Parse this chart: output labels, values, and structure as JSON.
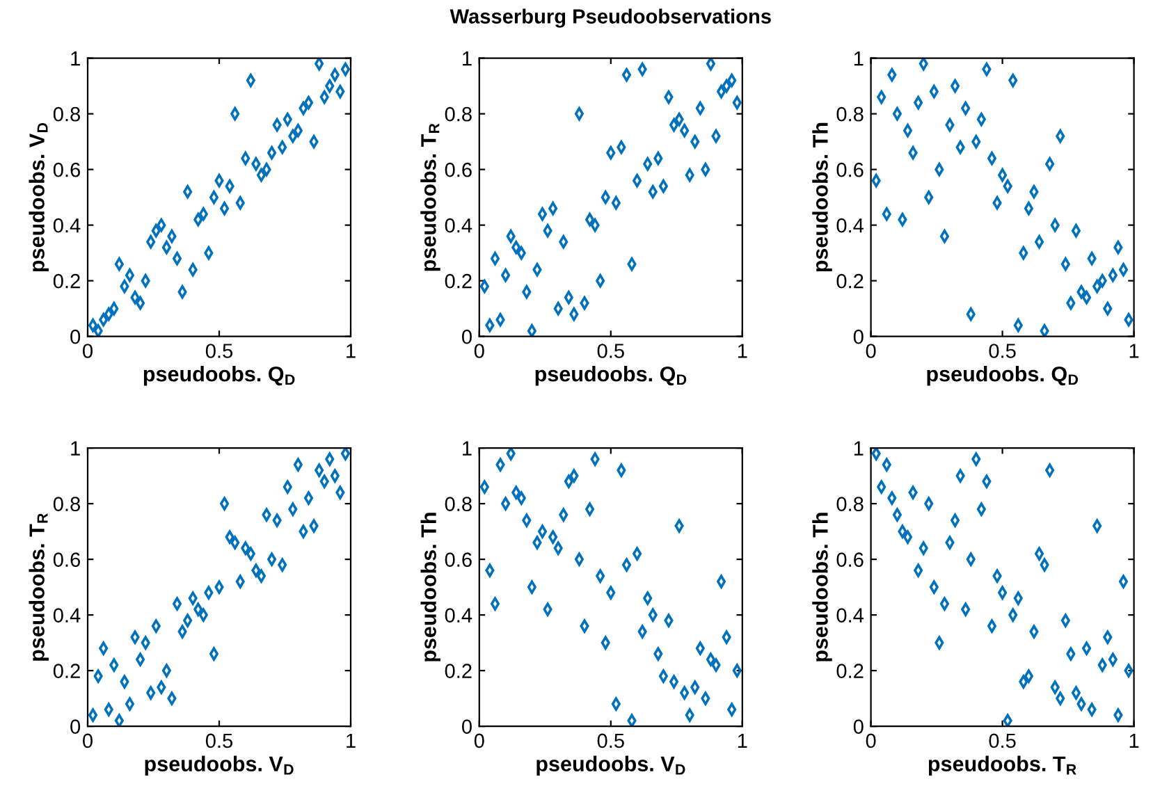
{
  "chart_data": [
    {
      "type": "scatter",
      "xlabel": "pseudoobs. Q$_{D}$",
      "ylabel": "pseudoobs. V$_{D}$",
      "xlim": [
        0,
        1
      ],
      "ylim": [
        0,
        1
      ],
      "xticks": [
        0,
        0.5,
        1
      ],
      "yticks": [
        0,
        0.2,
        0.4,
        0.6,
        0.8,
        1
      ],
      "grid": false,
      "legend": false,
      "marker": "diamond",
      "x": [
        0.02,
        0.04,
        0.06,
        0.08,
        0.1,
        0.12,
        0.14,
        0.16,
        0.18,
        0.2,
        0.22,
        0.24,
        0.26,
        0.28,
        0.3,
        0.32,
        0.34,
        0.36,
        0.38,
        0.4,
        0.42,
        0.44,
        0.46,
        0.48,
        0.5,
        0.52,
        0.54,
        0.56,
        0.58,
        0.6,
        0.62,
        0.64,
        0.66,
        0.68,
        0.7,
        0.72,
        0.74,
        0.76,
        0.78,
        0.8,
        0.82,
        0.84,
        0.86,
        0.88,
        0.9,
        0.92,
        0.94,
        0.96,
        0.98
      ],
      "series": [
        {
          "color": "#0072bd",
          "values": [
            0.04,
            0.02,
            0.06,
            0.08,
            0.1,
            0.26,
            0.18,
            0.22,
            0.14,
            0.12,
            0.2,
            0.34,
            0.38,
            0.4,
            0.32,
            0.36,
            0.28,
            0.16,
            0.52,
            0.24,
            0.42,
            0.44,
            0.3,
            0.5,
            0.56,
            0.46,
            0.54,
            0.8,
            0.48,
            0.64,
            0.92,
            0.62,
            0.58,
            0.6,
            0.66,
            0.76,
            0.68,
            0.78,
            0.72,
            0.74,
            0.82,
            0.84,
            0.7,
            0.98,
            0.86,
            0.9,
            0.94,
            0.88,
            0.96
          ]
        }
      ]
    },
    {
      "type": "scatter",
      "title": "Wasserburg Pseudoobservations",
      "xlabel": "pseudoobs. Q$_{D}$",
      "ylabel": "pseudoobs. T$_{R}$",
      "xlim": [
        0,
        1
      ],
      "ylim": [
        0,
        1
      ],
      "xticks": [
        0,
        0.5,
        1
      ],
      "yticks": [
        0,
        0.2,
        0.4,
        0.6,
        0.8,
        1
      ],
      "grid": false,
      "legend": false,
      "marker": "diamond",
      "x": [
        0.02,
        0.04,
        0.06,
        0.08,
        0.1,
        0.12,
        0.14,
        0.16,
        0.18,
        0.2,
        0.22,
        0.24,
        0.26,
        0.28,
        0.3,
        0.32,
        0.34,
        0.36,
        0.38,
        0.4,
        0.42,
        0.44,
        0.46,
        0.48,
        0.5,
        0.52,
        0.54,
        0.56,
        0.58,
        0.6,
        0.62,
        0.64,
        0.66,
        0.68,
        0.7,
        0.72,
        0.74,
        0.76,
        0.78,
        0.8,
        0.82,
        0.84,
        0.86,
        0.88,
        0.9,
        0.92,
        0.94,
        0.96,
        0.98
      ],
      "series": [
        {
          "color": "#0072bd",
          "values": [
            0.18,
            0.04,
            0.28,
            0.06,
            0.22,
            0.36,
            0.32,
            0.3,
            0.16,
            0.02,
            0.24,
            0.44,
            0.38,
            0.46,
            0.1,
            0.34,
            0.14,
            0.08,
            0.8,
            0.12,
            0.42,
            0.4,
            0.2,
            0.5,
            0.66,
            0.48,
            0.68,
            0.94,
            0.26,
            0.56,
            0.96,
            0.62,
            0.52,
            0.64,
            0.54,
            0.86,
            0.76,
            0.78,
            0.74,
            0.58,
            0.7,
            0.82,
            0.6,
            0.98,
            0.72,
            0.88,
            0.9,
            0.92,
            0.84
          ]
        }
      ]
    },
    {
      "type": "scatter",
      "xlabel": "pseudoobs. Q$_{D}$",
      "ylabel": "pseudoobs. Th",
      "xlim": [
        0,
        1
      ],
      "ylim": [
        0,
        1
      ],
      "xticks": [
        0,
        0.5,
        1
      ],
      "yticks": [
        0,
        0.2,
        0.4,
        0.6,
        0.8,
        1
      ],
      "grid": false,
      "legend": false,
      "marker": "diamond",
      "x": [
        0.02,
        0.04,
        0.06,
        0.08,
        0.1,
        0.12,
        0.14,
        0.16,
        0.18,
        0.2,
        0.22,
        0.24,
        0.26,
        0.28,
        0.3,
        0.32,
        0.34,
        0.36,
        0.38,
        0.4,
        0.42,
        0.44,
        0.46,
        0.48,
        0.5,
        0.52,
        0.54,
        0.56,
        0.58,
        0.6,
        0.62,
        0.64,
        0.66,
        0.68,
        0.7,
        0.72,
        0.74,
        0.76,
        0.78,
        0.8,
        0.82,
        0.84,
        0.86,
        0.88,
        0.9,
        0.92,
        0.94,
        0.96,
        0.98
      ],
      "series": [
        {
          "color": "#0072bd",
          "values": [
            0.56,
            0.86,
            0.44,
            0.94,
            0.8,
            0.42,
            0.74,
            0.66,
            0.84,
            0.98,
            0.5,
            0.88,
            0.6,
            0.36,
            0.76,
            0.9,
            0.68,
            0.82,
            0.08,
            0.7,
            0.78,
            0.96,
            0.64,
            0.48,
            0.58,
            0.54,
            0.92,
            0.04,
            0.3,
            0.46,
            0.52,
            0.34,
            0.02,
            0.62,
            0.4,
            0.72,
            0.26,
            0.12,
            0.38,
            0.16,
            0.14,
            0.28,
            0.18,
            0.2,
            0.1,
            0.22,
            0.32,
            0.24,
            0.06
          ]
        }
      ]
    },
    {
      "type": "scatter",
      "xlabel": "pseudoobs. V$_{D}$",
      "ylabel": "pseudoobs. T$_{R}$",
      "xlim": [
        0,
        1
      ],
      "ylim": [
        0,
        1
      ],
      "xticks": [
        0,
        0.5,
        1
      ],
      "yticks": [
        0,
        0.2,
        0.4,
        0.6,
        0.8,
        1
      ],
      "grid": false,
      "legend": false,
      "marker": "diamond",
      "x": [
        0.02,
        0.04,
        0.06,
        0.08,
        0.1,
        0.12,
        0.14,
        0.16,
        0.18,
        0.2,
        0.22,
        0.24,
        0.26,
        0.28,
        0.3,
        0.32,
        0.34,
        0.36,
        0.38,
        0.4,
        0.42,
        0.44,
        0.46,
        0.48,
        0.5,
        0.52,
        0.54,
        0.56,
        0.58,
        0.6,
        0.62,
        0.64,
        0.66,
        0.68,
        0.7,
        0.72,
        0.74,
        0.76,
        0.78,
        0.8,
        0.82,
        0.84,
        0.86,
        0.88,
        0.9,
        0.92,
        0.94,
        0.96,
        0.98
      ],
      "series": [
        {
          "color": "#0072bd",
          "values": [
            0.04,
            0.18,
            0.28,
            0.06,
            0.22,
            0.02,
            0.16,
            0.08,
            0.32,
            0.24,
            0.3,
            0.12,
            0.36,
            0.14,
            0.2,
            0.1,
            0.44,
            0.34,
            0.38,
            0.46,
            0.42,
            0.4,
            0.48,
            0.26,
            0.5,
            0.8,
            0.68,
            0.66,
            0.52,
            0.64,
            0.62,
            0.56,
            0.54,
            0.76,
            0.6,
            0.74,
            0.58,
            0.86,
            0.78,
            0.94,
            0.7,
            0.82,
            0.72,
            0.92,
            0.88,
            0.96,
            0.9,
            0.84,
            0.98
          ]
        }
      ]
    },
    {
      "type": "scatter",
      "xlabel": "pseudoobs. V$_{D}$",
      "ylabel": "pseudoobs. Th",
      "xlim": [
        0,
        1
      ],
      "ylim": [
        0,
        1
      ],
      "xticks": [
        0,
        0.5,
        1
      ],
      "yticks": [
        0,
        0.2,
        0.4,
        0.6,
        0.8,
        1
      ],
      "grid": false,
      "legend": false,
      "marker": "diamond",
      "x": [
        0.02,
        0.04,
        0.06,
        0.08,
        0.1,
        0.12,
        0.14,
        0.16,
        0.18,
        0.2,
        0.22,
        0.24,
        0.26,
        0.28,
        0.3,
        0.32,
        0.34,
        0.36,
        0.38,
        0.4,
        0.42,
        0.44,
        0.46,
        0.48,
        0.5,
        0.52,
        0.54,
        0.56,
        0.58,
        0.6,
        0.62,
        0.64,
        0.66,
        0.68,
        0.7,
        0.72,
        0.74,
        0.76,
        0.78,
        0.8,
        0.82,
        0.84,
        0.86,
        0.88,
        0.9,
        0.92,
        0.94,
        0.96,
        0.98
      ],
      "series": [
        {
          "color": "#0072bd",
          "values": [
            0.86,
            0.56,
            0.44,
            0.94,
            0.8,
            0.98,
            0.84,
            0.82,
            0.74,
            0.5,
            0.66,
            0.7,
            0.42,
            0.68,
            0.64,
            0.76,
            0.88,
            0.9,
            0.6,
            0.36,
            0.78,
            0.96,
            0.54,
            0.3,
            0.48,
            0.08,
            0.92,
            0.58,
            0.02,
            0.62,
            0.34,
            0.46,
            0.4,
            0.26,
            0.18,
            0.38,
            0.16,
            0.72,
            0.12,
            0.04,
            0.14,
            0.28,
            0.1,
            0.24,
            0.22,
            0.52,
            0.32,
            0.06,
            0.2
          ]
        }
      ]
    },
    {
      "type": "scatter",
      "xlabel": "pseudoobs. T$_{R}$",
      "ylabel": "pseudoobs. Th",
      "xlim": [
        0,
        1
      ],
      "ylim": [
        0,
        1
      ],
      "xticks": [
        0,
        0.5,
        1
      ],
      "yticks": [
        0,
        0.2,
        0.4,
        0.6,
        0.8,
        1
      ],
      "grid": false,
      "legend": false,
      "marker": "diamond",
      "x": [
        0.02,
        0.04,
        0.06,
        0.08,
        0.1,
        0.12,
        0.14,
        0.16,
        0.18,
        0.2,
        0.22,
        0.24,
        0.26,
        0.28,
        0.3,
        0.32,
        0.34,
        0.36,
        0.38,
        0.4,
        0.42,
        0.44,
        0.46,
        0.48,
        0.5,
        0.52,
        0.54,
        0.56,
        0.58,
        0.6,
        0.62,
        0.64,
        0.66,
        0.68,
        0.7,
        0.72,
        0.74,
        0.76,
        0.78,
        0.8,
        0.82,
        0.84,
        0.86,
        0.88,
        0.9,
        0.92,
        0.94,
        0.96,
        0.98
      ],
      "series": [
        {
          "color": "#0072bd",
          "values": [
            0.98,
            0.86,
            0.94,
            0.82,
            0.76,
            0.7,
            0.68,
            0.84,
            0.56,
            0.64,
            0.8,
            0.5,
            0.3,
            0.44,
            0.66,
            0.74,
            0.9,
            0.42,
            0.6,
            0.96,
            0.78,
            0.88,
            0.36,
            0.54,
            0.48,
            0.02,
            0.4,
            0.46,
            0.16,
            0.18,
            0.34,
            0.62,
            0.58,
            0.92,
            0.14,
            0.1,
            0.38,
            0.26,
            0.12,
            0.08,
            0.28,
            0.06,
            0.72,
            0.22,
            0.32,
            0.24,
            0.04,
            0.52,
            0.2
          ]
        }
      ]
    }
  ]
}
